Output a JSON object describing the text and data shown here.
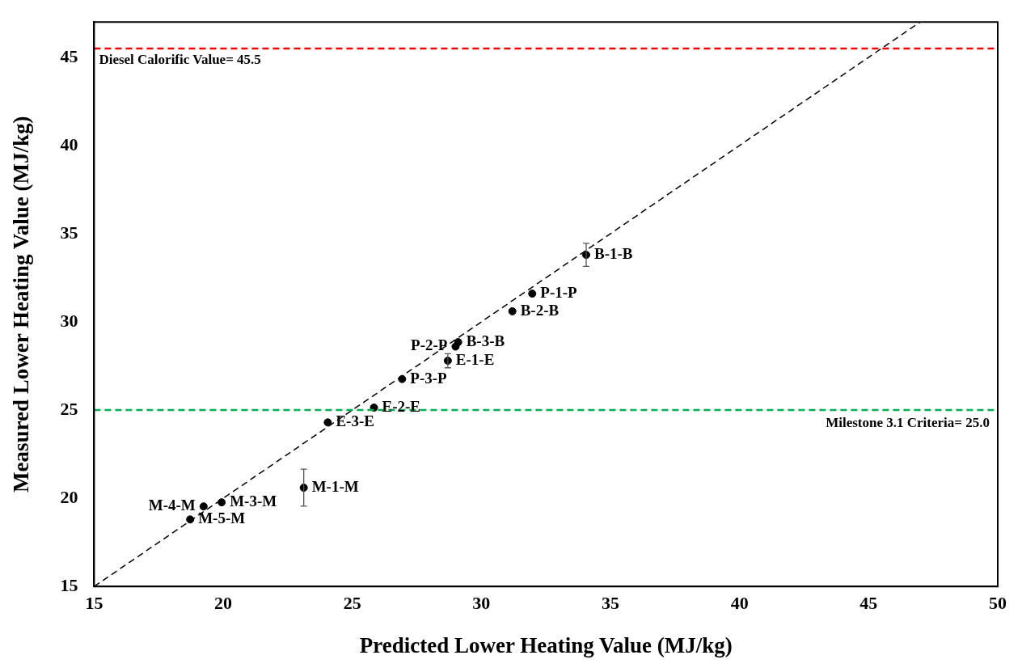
{
  "chart_data": {
    "type": "scatter",
    "xlabel": "Predicted Lower Heating Value (MJ/kg)",
    "ylabel": "Measured Lower Heating Value (MJ/kg)",
    "xlim": [
      15,
      50
    ],
    "ylim": [
      15,
      47
    ],
    "xticks": [
      15,
      20,
      25,
      30,
      35,
      40,
      45,
      50
    ],
    "yticks": [
      15,
      20,
      25,
      30,
      35,
      40,
      45
    ],
    "grid": false,
    "legend": false,
    "marker": "circle",
    "series": [
      {
        "color": "#000000",
        "x": [
          34.06,
          31.97,
          31.2,
          29.1,
          29.0,
          28.7,
          26.93,
          25.84,
          24.05,
          23.12,
          19.94,
          19.24,
          18.72
        ],
        "values": [
          33.8,
          31.6,
          30.6,
          28.85,
          28.6,
          27.8,
          26.76,
          25.14,
          24.3,
          20.6,
          19.77,
          19.54,
          18.8
        ],
        "errors": [
          0.65,
          null,
          null,
          null,
          null,
          0.4,
          null,
          null,
          null,
          1.05,
          null,
          null,
          null
        ]
      },
      {
        "type": "line",
        "color": "#000000",
        "x": [
          15,
          47
        ],
        "values": [
          15,
          47
        ],
        "line_style": "dashed",
        "marker": "none"
      }
    ],
    "ref_lines": [
      {
        "axis": "y",
        "value": 45.5,
        "label": "Diesel Calorific Value= 45.5",
        "color": "#ff0000",
        "line_style": "dashed"
      },
      {
        "axis": "y",
        "value": 25,
        "label": "Milestone 3.1 Criteria= 25.0",
        "color": "#00b050",
        "line_style": "dashed"
      }
    ],
    "annotations": [
      {
        "text": "B-1-B",
        "x": 34.06,
        "y": 33.8
      },
      {
        "text": "P-1-P",
        "x": 31.97,
        "y": 31.6
      },
      {
        "text": "B-2-B",
        "x": 31.2,
        "y": 30.6
      },
      {
        "text": "B-3-B",
        "x": 29.1,
        "y": 28.85
      },
      {
        "text": "P-2-P",
        "x": 29.0,
        "y": 28.6
      },
      {
        "text": "E-1-E",
        "x": 28.7,
        "y": 27.8
      },
      {
        "text": "P-3-P",
        "x": 26.93,
        "y": 26.76
      },
      {
        "text": "E-2-E",
        "x": 25.84,
        "y": 25.14
      },
      {
        "text": "E-3-E",
        "x": 24.05,
        "y": 24.3
      },
      {
        "text": "M-1-M",
        "x": 23.12,
        "y": 20.6
      },
      {
        "text": "M-3-M",
        "x": 19.94,
        "y": 19.77
      },
      {
        "text": "M-4-M",
        "x": 19.24,
        "y": 19.54
      },
      {
        "text": "M-5-M",
        "x": 18.72,
        "y": 18.8
      }
    ]
  }
}
